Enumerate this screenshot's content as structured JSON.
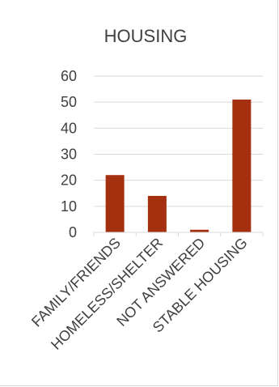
{
  "chart_data": {
    "type": "bar",
    "title": "HOUSING",
    "categories": [
      "FAMILY/FRIENDS",
      "HOMELESS/SHELTER",
      "NOT ANSWERED",
      "STABLE HOUSING"
    ],
    "values": [
      22,
      14,
      1,
      51
    ],
    "xlabel": "",
    "ylabel": "",
    "ylim": [
      0,
      60
    ],
    "yticks": [
      0,
      10,
      20,
      30,
      40,
      50,
      60
    ],
    "grid": true,
    "legend": "none",
    "bar_color": "#a5300f",
    "grid_color": "#d9d9d9",
    "text_color": "#404040"
  }
}
